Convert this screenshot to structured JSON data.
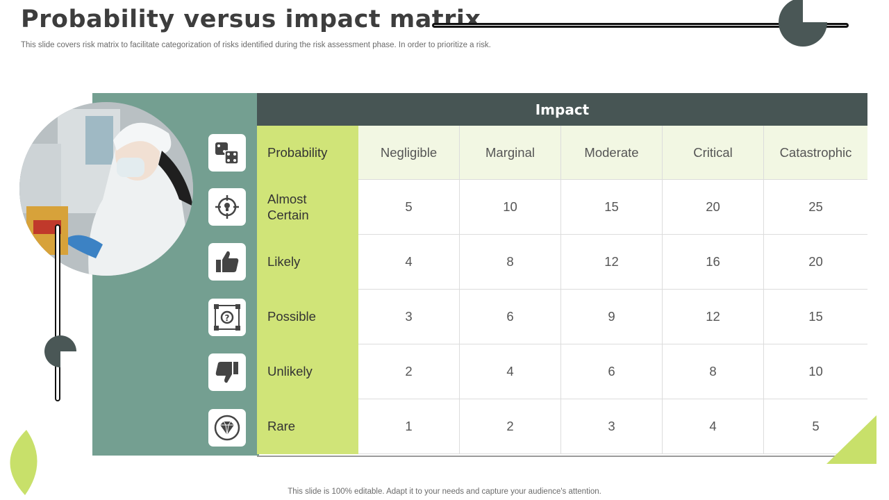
{
  "slide": {
    "title": "Probability versus impact matrix",
    "subtitle": "This slide covers risk matrix to facilitate categorization of risks identified during the risk assessment phase. In order to prioritize a risk.",
    "footer": "This slide is 100% editable. Adapt it to your needs and capture your audience's attention."
  },
  "matrix": {
    "header": "Impact",
    "corner_label": "Probability",
    "columns": [
      "Negligible",
      "Marginal",
      "Moderate",
      "Critical",
      "Catastrophic"
    ],
    "rows": [
      {
        "label": "Almost Certain",
        "icon": "target-icon",
        "values": [
          5,
          10,
          15,
          20,
          25
        ]
      },
      {
        "label": "Likely",
        "icon": "thumbs-up-icon",
        "values": [
          4,
          8,
          12,
          16,
          20
        ]
      },
      {
        "label": "Possible",
        "icon": "question-network-icon",
        "values": [
          3,
          6,
          9,
          12,
          15
        ]
      },
      {
        "label": "Unlikely",
        "icon": "thumbs-down-icon",
        "values": [
          2,
          4,
          6,
          8,
          10
        ]
      },
      {
        "label": "Rare",
        "icon": "diamond-icon",
        "values": [
          1,
          2,
          3,
          4,
          5
        ]
      }
    ],
    "header_icon": "dice-icon"
  },
  "colors": {
    "header_bg": "#475554",
    "label_bg": "#d0e478",
    "column_header_bg": "#f2f7e3",
    "panel_bg": "#749f91",
    "accent_dark": "#4a5756",
    "accent_lime": "#c8e06a"
  }
}
